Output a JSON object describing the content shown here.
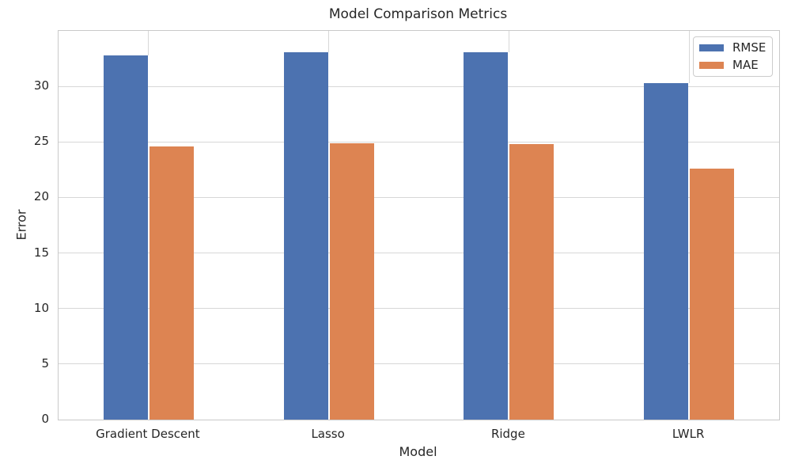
{
  "title": "Model Comparison Metrics",
  "chart_data": {
    "type": "bar",
    "title": "Model Comparison Metrics",
    "xlabel": "Model",
    "ylabel": "Error",
    "categories": [
      "Gradient Descent",
      "Lasso",
      "Ridge",
      "LWLR"
    ],
    "series": [
      {
        "name": "RMSE",
        "color": "#4C72B0",
        "values": [
          32.8,
          33.1,
          33.1,
          30.3
        ]
      },
      {
        "name": "MAE",
        "color": "#DD8452",
        "values": [
          24.6,
          24.9,
          24.8,
          22.6
        ]
      }
    ],
    "ylim": [
      0,
      35
    ],
    "yticks": [
      0,
      5,
      10,
      15,
      20,
      25,
      30
    ],
    "grid": true,
    "grid_style": "whitegrid",
    "legend_position": "upper right"
  },
  "colors": {
    "rmse": "#4C72B0",
    "mae": "#DD8452",
    "grid": "#d7d7d7",
    "spine": "#c9c9c9",
    "text": "#262626",
    "background": "#ffffff"
  }
}
